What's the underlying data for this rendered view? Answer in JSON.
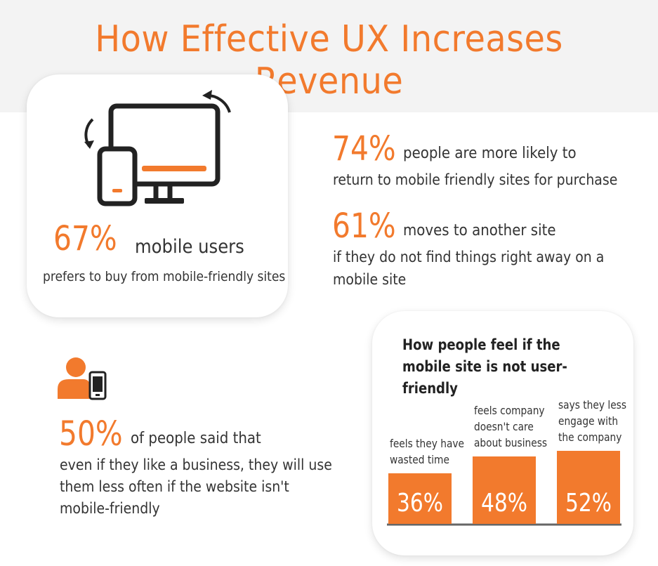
{
  "title": "How Effective UX Increases Revenue",
  "colors": {
    "accent": "#f27a2d",
    "text": "#333333",
    "axis": "#666666",
    "band": "#f3f3f3"
  },
  "mobile_card": {
    "icon": "devices-rotate-icon",
    "percent": "67%",
    "lead": "mobile users",
    "text": "prefers to buy from mobile-friendly sites"
  },
  "stat_74": {
    "percent": "74%",
    "lead": "people are more likely to",
    "text": "return to mobile friendly sites for purchase"
  },
  "stat_61": {
    "percent": "61%",
    "lead": "moves to another site",
    "text_line1": "if they do not find things right away on a",
    "text_line2": "mobile site"
  },
  "stat_50": {
    "icon": "user-phone-icon",
    "percent": "50%",
    "lead": "of people said that",
    "text_line1": "even if they like a business, they will use",
    "text_line2": "them less often if the website isn't",
    "text_line3": "mobile-friendly"
  },
  "chart_data": {
    "type": "bar",
    "title_line1": "How people feel if the",
    "title_line2": "mobile site is not user-friendly",
    "categories": [
      [
        "feels they have",
        "wasted time"
      ],
      [
        "feels company",
        "doesn't care",
        "about business"
      ],
      [
        "says they less",
        "engage with",
        "the company"
      ]
    ],
    "values": [
      36,
      48,
      52
    ],
    "value_labels": [
      "36%",
      "48%",
      "52%"
    ],
    "unit": "%",
    "ylim": [
      0,
      52
    ],
    "grid": false,
    "legend": "none"
  }
}
